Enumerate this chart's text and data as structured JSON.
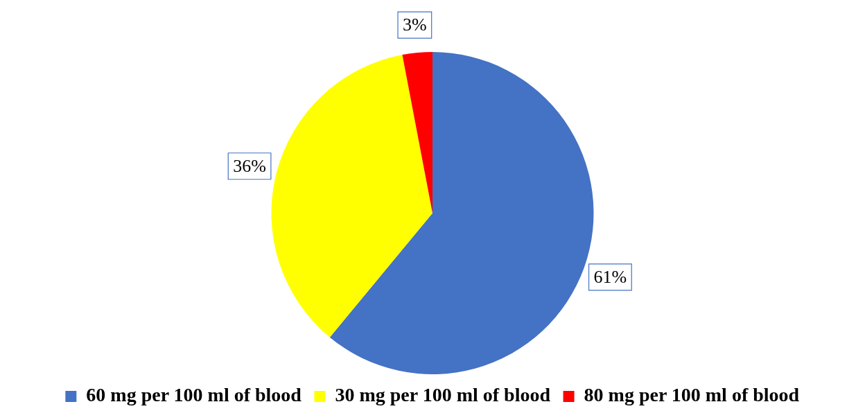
{
  "chart_data": {
    "type": "pie",
    "categories": [
      "60 mg per 100 ml of blood",
      "30 mg per 100 ml of blood",
      "80 mg per 100 ml of blood"
    ],
    "values": [
      61,
      36,
      3
    ],
    "colors": [
      "#4472c4",
      "#ffff00",
      "#ff0000"
    ],
    "value_labels": [
      "61%",
      "36%",
      "3%"
    ],
    "legend": "bottom"
  }
}
